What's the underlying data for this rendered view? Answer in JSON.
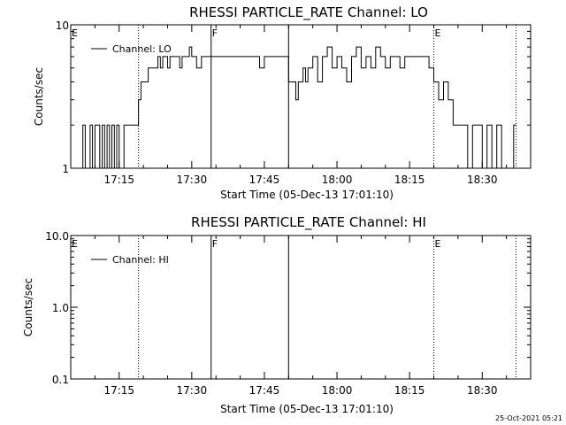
{
  "chart_data": [
    {
      "type": "line",
      "title": "RHESSI PARTICLE_RATE Channel: LO",
      "xlabel": "Start Time (05-Dec-13 17:01:10)",
      "ylabel": "Counts/sec",
      "yscale": "log",
      "ylim": [
        1,
        10
      ],
      "yticks": [
        "1",
        "10"
      ],
      "xlim": [
        "17:05",
        "18:40"
      ],
      "xticks": [
        "17:15",
        "17:30",
        "17:45",
        "18:00",
        "18:15",
        "18:30"
      ],
      "legend": {
        "placement": "top-left",
        "entries": [
          "Channel: LO"
        ]
      },
      "grid": false,
      "flags": [
        {
          "label": "E",
          "time": "17:05",
          "style": "none"
        },
        {
          "label": "",
          "time": "17:19",
          "style": "dotted"
        },
        {
          "label": "F",
          "time": "17:34",
          "style": "solid"
        },
        {
          "label": "",
          "time": "17:50",
          "style": "solid"
        },
        {
          "label": "E",
          "time": "18:20",
          "style": "dotted"
        },
        {
          "label": "",
          "time": "18:37",
          "style": "dotted"
        }
      ],
      "series": [
        {
          "name": "Channel: LO",
          "x": [
            "17:07:00",
            "17:07:30",
            "17:08:00",
            "17:09:00",
            "17:09:30",
            "17:10:00",
            "17:11:00",
            "17:11:30",
            "17:12:00",
            "17:12:30",
            "17:13:00",
            "17:13:30",
            "17:14:00",
            "17:14:30",
            "17:15:00",
            "17:16:00",
            "17:16:30",
            "17:17:00",
            "17:18:00",
            "17:19:00",
            "17:19:30",
            "17:20:00",
            "17:21:00",
            "17:22:00",
            "17:23:00",
            "17:23:30",
            "17:24:00",
            "17:25:00",
            "17:25:30",
            "17:26:00",
            "17:27:00",
            "17:27:30",
            "17:28:00",
            "17:29:00",
            "17:29:30",
            "17:30:00",
            "17:30:30",
            "17:31:00",
            "17:32:00",
            "17:33:00",
            "17:34:00",
            "17:35:00",
            "17:36:00",
            "17:38:00",
            "17:40:00",
            "17:42:00",
            "17:43:00",
            "17:44:00",
            "17:45:00",
            "17:47:00",
            "17:48:00",
            "17:49:00",
            "17:50:00",
            "17:51:00",
            "17:51:30",
            "17:52:00",
            "17:53:00",
            "17:53:30",
            "17:54:00",
            "17:55:00",
            "17:56:00",
            "17:57:00",
            "17:58:00",
            "17:59:00",
            "18:00:00",
            "18:01:00",
            "18:02:00",
            "18:03:00",
            "18:04:00",
            "18:05:00",
            "18:06:00",
            "18:07:00",
            "18:08:00",
            "18:09:00",
            "18:10:00",
            "18:11:00",
            "18:12:00",
            "18:13:00",
            "18:14:00",
            "18:15:00",
            "18:16:00",
            "18:17:00",
            "18:18:00",
            "18:19:00",
            "18:20:00",
            "18:21:00",
            "18:22:00",
            "18:23:00",
            "18:24:00",
            "18:25:00",
            "18:26:00",
            "18:27:00",
            "18:28:00",
            "18:29:00",
            "18:30:00",
            "18:31:00",
            "18:32:00",
            "18:33:00",
            "18:34:00",
            "18:35:00",
            "18:36:00",
            "18:36:30",
            "18:37:00"
          ],
          "values": [
            1,
            2,
            1,
            2,
            1,
            2,
            1,
            2,
            1,
            2,
            1,
            2,
            1,
            2,
            1,
            2,
            2,
            2,
            2,
            3,
            4,
            4,
            5,
            5,
            6,
            5,
            6,
            5,
            6,
            6,
            6,
            5,
            6,
            6,
            7,
            6,
            6,
            5,
            6,
            6,
            6,
            6,
            6,
            6,
            6,
            6,
            6,
            5,
            6,
            6,
            6,
            6,
            4,
            4,
            3,
            4,
            5,
            4,
            5,
            6,
            4,
            6,
            7,
            5,
            6,
            5,
            4,
            6,
            7,
            5,
            6,
            5,
            7,
            6,
            5,
            6,
            6,
            5,
            6,
            6,
            6,
            6,
            6,
            5,
            4,
            3,
            4,
            3,
            2,
            2,
            2,
            1,
            2,
            2,
            1,
            2,
            1,
            2,
            1,
            1,
            1,
            2,
            2
          ]
        }
      ]
    },
    {
      "type": "line",
      "title": "RHESSI PARTICLE_RATE Channel: HI",
      "xlabel": "Start Time (05-Dec-13 17:01:10)",
      "ylabel": "Counts/sec",
      "yscale": "log",
      "ylim": [
        0.1,
        10
      ],
      "yticks": [
        "0.1",
        "1.0",
        "10.0"
      ],
      "xlim": [
        "17:05",
        "18:40"
      ],
      "xticks": [
        "17:15",
        "17:30",
        "17:45",
        "18:00",
        "18:15",
        "18:30"
      ],
      "legend": {
        "placement": "top-left",
        "entries": [
          "Channel: HI"
        ]
      },
      "grid": false,
      "flags": [
        {
          "label": "E",
          "time": "17:05",
          "style": "none"
        },
        {
          "label": "",
          "time": "17:19",
          "style": "dotted"
        },
        {
          "label": "F",
          "time": "17:34",
          "style": "solid"
        },
        {
          "label": "",
          "time": "17:50",
          "style": "solid"
        },
        {
          "label": "E",
          "time": "18:20",
          "style": "dotted"
        },
        {
          "label": "",
          "time": "18:37",
          "style": "dotted"
        }
      ],
      "series": [
        {
          "name": "Channel: HI",
          "x": [],
          "values": []
        }
      ]
    }
  ],
  "footer": {
    "timestamp": "25-Oct-2021 05:21"
  }
}
